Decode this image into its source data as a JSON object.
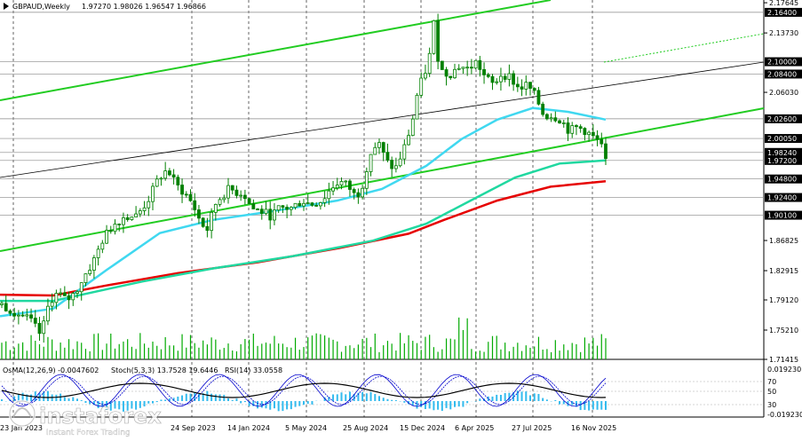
{
  "header": {
    "symbol": "GBPAUD,Weekly",
    "ohlc": "1.97270 1.98026 1.96547 1.96866"
  },
  "indicator_header": {
    "osma": "OsMA(12,26,9) -0.0047602",
    "stoch": "Stoch(5,3,3) 13.7528 19.6446",
    "rsi": "RSI(14) 33.0558"
  },
  "watermark": {
    "brand": "instaforex",
    "tagline": "Instant Forex Trading"
  },
  "colors": {
    "bg": "#ffffff",
    "candle": "#008000",
    "ma_red": "#e60000",
    "ma_teal": "#20d8a0",
    "ma_cyan": "#40d8f0",
    "trend_green": "#22cc22",
    "grid": "#000000",
    "osma_bar": "#33bbee",
    "stoch_main": "#0000cc",
    "stoch_signal": "#0000cc",
    "rsi": "#000000",
    "volume": "#00aa00"
  },
  "chart_data": {
    "type": "candlestick",
    "title": "GBPAUD,Weekly",
    "ylim": [
      1.71415,
      2.18
    ],
    "y_ticks": [
      "2.17645",
      "2.13730",
      "2.06030",
      "1.86825",
      "1.82915",
      "1.79120",
      "1.75210",
      "1.71415"
    ],
    "price_levels": [
      {
        "label": "2.16400",
        "value": 2.164,
        "color": "#888888"
      },
      {
        "label": "2.10000",
        "value": 2.1,
        "color": "#888888"
      },
      {
        "label": "2.08400",
        "value": 2.084,
        "color": "#888888"
      },
      {
        "label": "2.02600",
        "value": 2.026,
        "color": "#888888"
      },
      {
        "label": "2.00050",
        "value": 2.0005,
        "color": "#888888"
      },
      {
        "label": "1.98240",
        "value": 1.9824,
        "color": "#888888"
      },
      {
        "label": "1.97200",
        "value": 1.972,
        "color": "#888888"
      },
      {
        "label": "1.94800",
        "value": 1.948,
        "color": "#888888"
      },
      {
        "label": "1.92400",
        "value": 1.924,
        "color": "#888888"
      },
      {
        "label": "1.90100",
        "value": 1.901,
        "color": "#888888"
      }
    ],
    "x_labels": [
      "23 Jan 2023",
      "24 Sep 2023",
      "14 Jan 2024",
      "5 May 2024",
      "25 Aug 2024",
      "15 Dec 2024",
      "6 Apr 2025",
      "27 Jul 2025",
      "16 Nov 2025"
    ],
    "close_path": [
      [
        0,
        1.785
      ],
      [
        10,
        1.775
      ],
      [
        20,
        1.765
      ],
      [
        28,
        1.745
      ],
      [
        34,
        1.79
      ],
      [
        40,
        1.8
      ],
      [
        46,
        1.79
      ],
      [
        52,
        1.8
      ],
      [
        58,
        1.82
      ],
      [
        65,
        1.84
      ],
      [
        72,
        1.87
      ],
      [
        80,
        1.89
      ],
      [
        88,
        1.9
      ],
      [
        96,
        1.9
      ],
      [
        104,
        1.92
      ],
      [
        112,
        1.95
      ],
      [
        118,
        1.96
      ],
      [
        124,
        1.94
      ],
      [
        130,
        1.93
      ],
      [
        136,
        1.915
      ],
      [
        142,
        1.89
      ],
      [
        148,
        1.88
      ],
      [
        150,
        1.91
      ],
      [
        156,
        1.925
      ],
      [
        162,
        1.935
      ],
      [
        168,
        1.93
      ],
      [
        172,
        1.93
      ],
      [
        178,
        1.91
      ],
      [
        186,
        1.905
      ],
      [
        192,
        1.9
      ],
      [
        198,
        1.91
      ],
      [
        206,
        1.91
      ],
      [
        214,
        1.92
      ],
      [
        220,
        1.915
      ],
      [
        228,
        1.92
      ],
      [
        234,
        1.935
      ],
      [
        240,
        1.945
      ],
      [
        246,
        1.94
      ],
      [
        252,
        1.925
      ],
      [
        256,
        1.935
      ],
      [
        262,
        1.98
      ],
      [
        268,
        1.995
      ],
      [
        274,
        1.97
      ],
      [
        280,
        1.96
      ],
      [
        286,
        1.985
      ],
      [
        292,
        2.02
      ],
      [
        296,
        2.06
      ],
      [
        300,
        2.08
      ],
      [
        304,
        2.1
      ],
      [
        308,
        2.155
      ],
      [
        310,
        2.11
      ],
      [
        314,
        2.085
      ],
      [
        320,
        2.085
      ],
      [
        326,
        2.095
      ],
      [
        332,
        2.09
      ],
      [
        338,
        2.1
      ],
      [
        344,
        2.08
      ],
      [
        350,
        2.07
      ],
      [
        356,
        2.085
      ],
      [
        362,
        2.08
      ],
      [
        368,
        2.065
      ],
      [
        374,
        2.07
      ],
      [
        380,
        2.055
      ],
      [
        386,
        2.03
      ],
      [
        392,
        2.03
      ],
      [
        398,
        2.025
      ],
      [
        404,
        2.01
      ],
      [
        410,
        2.015
      ],
      [
        416,
        2.01
      ],
      [
        422,
        2.0
      ],
      [
        426,
        1.995
      ],
      [
        430,
        1.97
      ]
    ],
    "candle_x": [
      2,
      682
    ],
    "series": [
      {
        "name": "MA slow",
        "color": "#e60000",
        "points": [
          [
            0,
            1.798
          ],
          [
            60,
            1.797
          ],
          [
            120,
            1.81
          ],
          [
            200,
            1.826
          ],
          [
            290,
            1.84
          ],
          [
            380,
            1.858
          ],
          [
            460,
            1.877
          ],
          [
            500,
            1.895
          ],
          [
            560,
            1.92
          ],
          [
            620,
            1.938
          ],
          [
            682,
            1.945
          ]
        ]
      },
      {
        "name": "MA mid",
        "color": "#20d8a0",
        "points": [
          [
            0,
            1.79
          ],
          [
            60,
            1.79
          ],
          [
            160,
            1.815
          ],
          [
            240,
            1.832
          ],
          [
            330,
            1.848
          ],
          [
            420,
            1.868
          ],
          [
            480,
            1.89
          ],
          [
            530,
            1.92
          ],
          [
            580,
            1.95
          ],
          [
            630,
            1.968
          ],
          [
            682,
            1.972
          ]
        ]
      },
      {
        "name": "MA fast",
        "color": "#40d8f0",
        "points": [
          [
            0,
            1.77
          ],
          [
            60,
            1.78
          ],
          [
            120,
            1.83
          ],
          [
            180,
            1.878
          ],
          [
            240,
            1.895
          ],
          [
            300,
            1.905
          ],
          [
            380,
            1.92
          ],
          [
            430,
            1.935
          ],
          [
            480,
            1.965
          ],
          [
            520,
            2.0
          ],
          [
            560,
            2.025
          ],
          [
            600,
            2.04
          ],
          [
            640,
            2.035
          ],
          [
            682,
            2.025
          ]
        ]
      }
    ]
  }
}
